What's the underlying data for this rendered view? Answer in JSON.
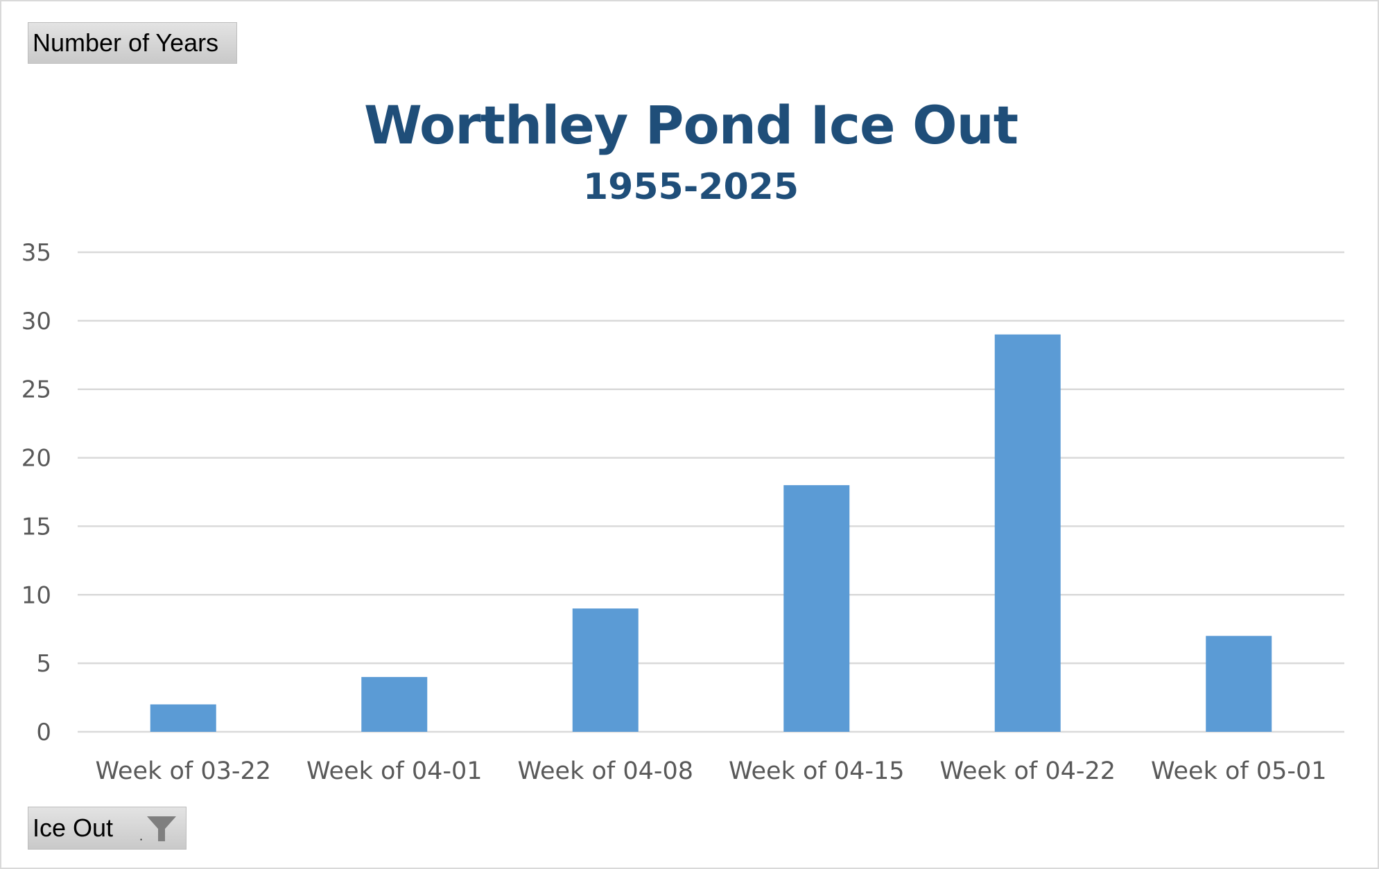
{
  "pivot": {
    "values_field_label": "Number of Years",
    "axis_field_label": "Ice Out",
    "axis_filter_icon": "filter-icon"
  },
  "colors": {
    "title": "#1f4e79",
    "bar": "#5b9bd5",
    "gridline": "#d9d9d9",
    "axis_text": "#595959"
  },
  "chart_data": {
    "type": "bar",
    "title": "Worthley Pond Ice Out",
    "subtitle": "1955-2025",
    "xlabel": "",
    "ylabel": "",
    "categories": [
      "Week of 03-22",
      "Week of 04-01",
      "Week of 04-08",
      "Week of 04-15",
      "Week of 04-22",
      "Week of 05-01"
    ],
    "values": [
      2,
      4,
      9,
      18,
      29,
      7
    ],
    "ylim": [
      0,
      35
    ],
    "yticks": [
      0,
      5,
      10,
      15,
      20,
      25,
      30,
      35
    ],
    "grid": true,
    "legend": "none"
  }
}
